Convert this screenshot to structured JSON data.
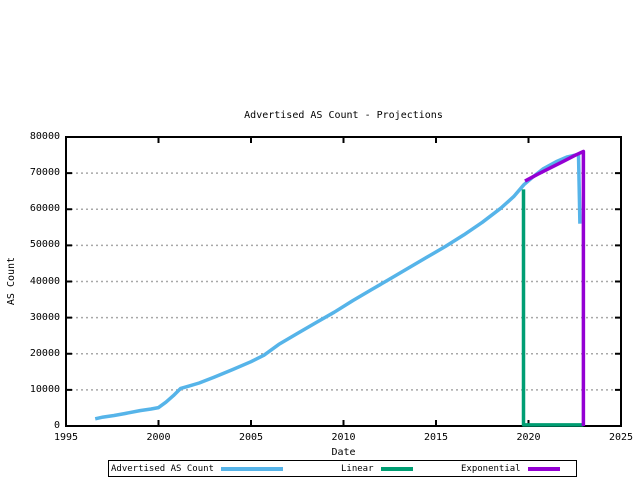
{
  "chart_data": {
    "type": "line",
    "title": "Advertised AS Count - Projections",
    "xlabel": "Date",
    "ylabel": "AS Count",
    "xlim": [
      1995,
      2025
    ],
    "ylim": [
      0,
      80000
    ],
    "xticks": [
      1995,
      2000,
      2005,
      2010,
      2015,
      2020,
      2025
    ],
    "xtick_labels": [
      "1995",
      "2000",
      "2005",
      "2010",
      "2015",
      "2020",
      "2025"
    ],
    "yticks": [
      0,
      10000,
      20000,
      30000,
      40000,
      50000,
      60000,
      70000,
      80000
    ],
    "ytick_labels": [
      "0",
      "10000",
      "20000",
      "30000",
      "40000",
      "50000",
      "60000",
      "70000",
      "80000"
    ],
    "grid": "horizontal dashed lines at y ticks",
    "grid_color": "#a8a8a8",
    "border_color": "#000000",
    "legend_position": "below plot, boxed",
    "series": [
      {
        "name": "Advertised AS Count",
        "color": "#56b4e9",
        "points": [
          [
            1996.58,
            2000
          ],
          [
            1997.0,
            2450
          ],
          [
            1997.6,
            2900
          ],
          [
            1998.2,
            3450
          ],
          [
            1999.0,
            4250
          ],
          [
            1999.6,
            4700
          ],
          [
            2000.0,
            5100
          ],
          [
            2000.4,
            6600
          ],
          [
            2000.8,
            8400
          ],
          [
            2001.2,
            10400
          ],
          [
            2001.6,
            11000
          ],
          [
            2002.2,
            11900
          ],
          [
            2003.0,
            13500
          ],
          [
            2004.0,
            15600
          ],
          [
            2005.0,
            17800
          ],
          [
            2005.7,
            19600
          ],
          [
            2006.5,
            22600
          ],
          [
            2007.5,
            25600
          ],
          [
            2008.5,
            28600
          ],
          [
            2009.5,
            31500
          ],
          [
            2010.5,
            34700
          ],
          [
            2011.5,
            37700
          ],
          [
            2012.5,
            40700
          ],
          [
            2013.5,
            43700
          ],
          [
            2014.5,
            46700
          ],
          [
            2015.5,
            49700
          ],
          [
            2016.5,
            52900
          ],
          [
            2017.5,
            56400
          ],
          [
            2018.5,
            60300
          ],
          [
            2019.2,
            63500
          ],
          [
            2019.75,
            66800
          ],
          [
            2020.2,
            68800
          ],
          [
            2020.8,
            71200
          ],
          [
            2021.5,
            73200
          ],
          [
            2022.1,
            74500
          ],
          [
            2022.7,
            75200
          ],
          [
            2022.78,
            56000
          ]
        ]
      },
      {
        "name": "Linear",
        "color": "#009e73",
        "points": [
          [
            2019.73,
            65500
          ],
          [
            2019.73,
            300
          ],
          [
            2022.97,
            300
          ]
        ]
      },
      {
        "name": "Exponential",
        "color": "#9400d3",
        "points": [
          [
            2019.81,
            67800
          ],
          [
            2020.5,
            69700
          ],
          [
            2021.2,
            71500
          ],
          [
            2021.9,
            73300
          ],
          [
            2022.5,
            74900
          ],
          [
            2022.97,
            76000
          ],
          [
            2022.97,
            0
          ]
        ]
      }
    ]
  }
}
